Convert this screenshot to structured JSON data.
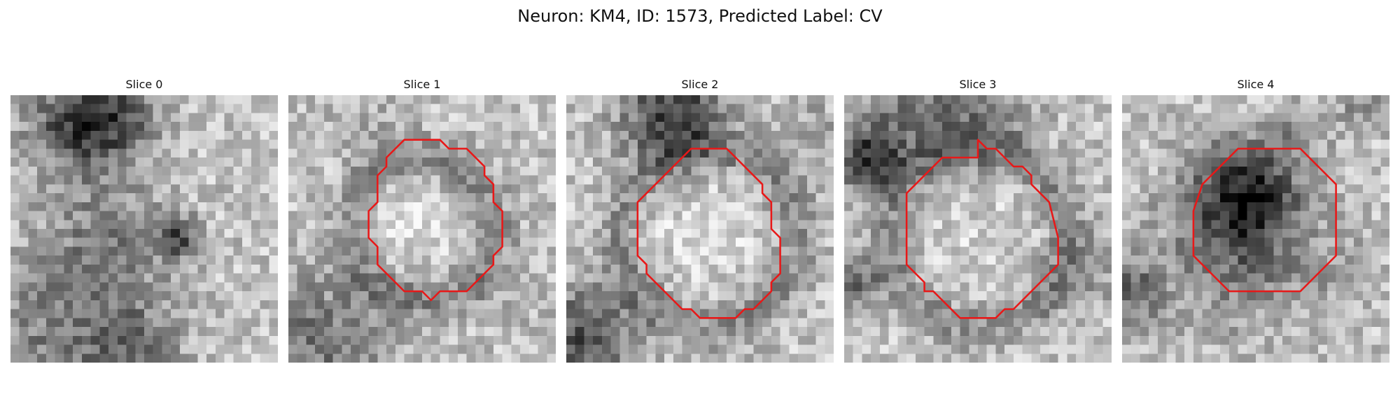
{
  "figure": {
    "title": "Neuron: KM4, ID: 1573, Predicted Label: CV",
    "contour_color": "#e81818"
  },
  "panels": [
    {
      "title": "Slice 0",
      "contour": false
    },
    {
      "title": "Slice 1",
      "contour": true
    },
    {
      "title": "Slice 2",
      "contour": true
    },
    {
      "title": "Slice 3",
      "contour": true
    },
    {
      "title": "Slice 4",
      "contour": true
    }
  ]
}
